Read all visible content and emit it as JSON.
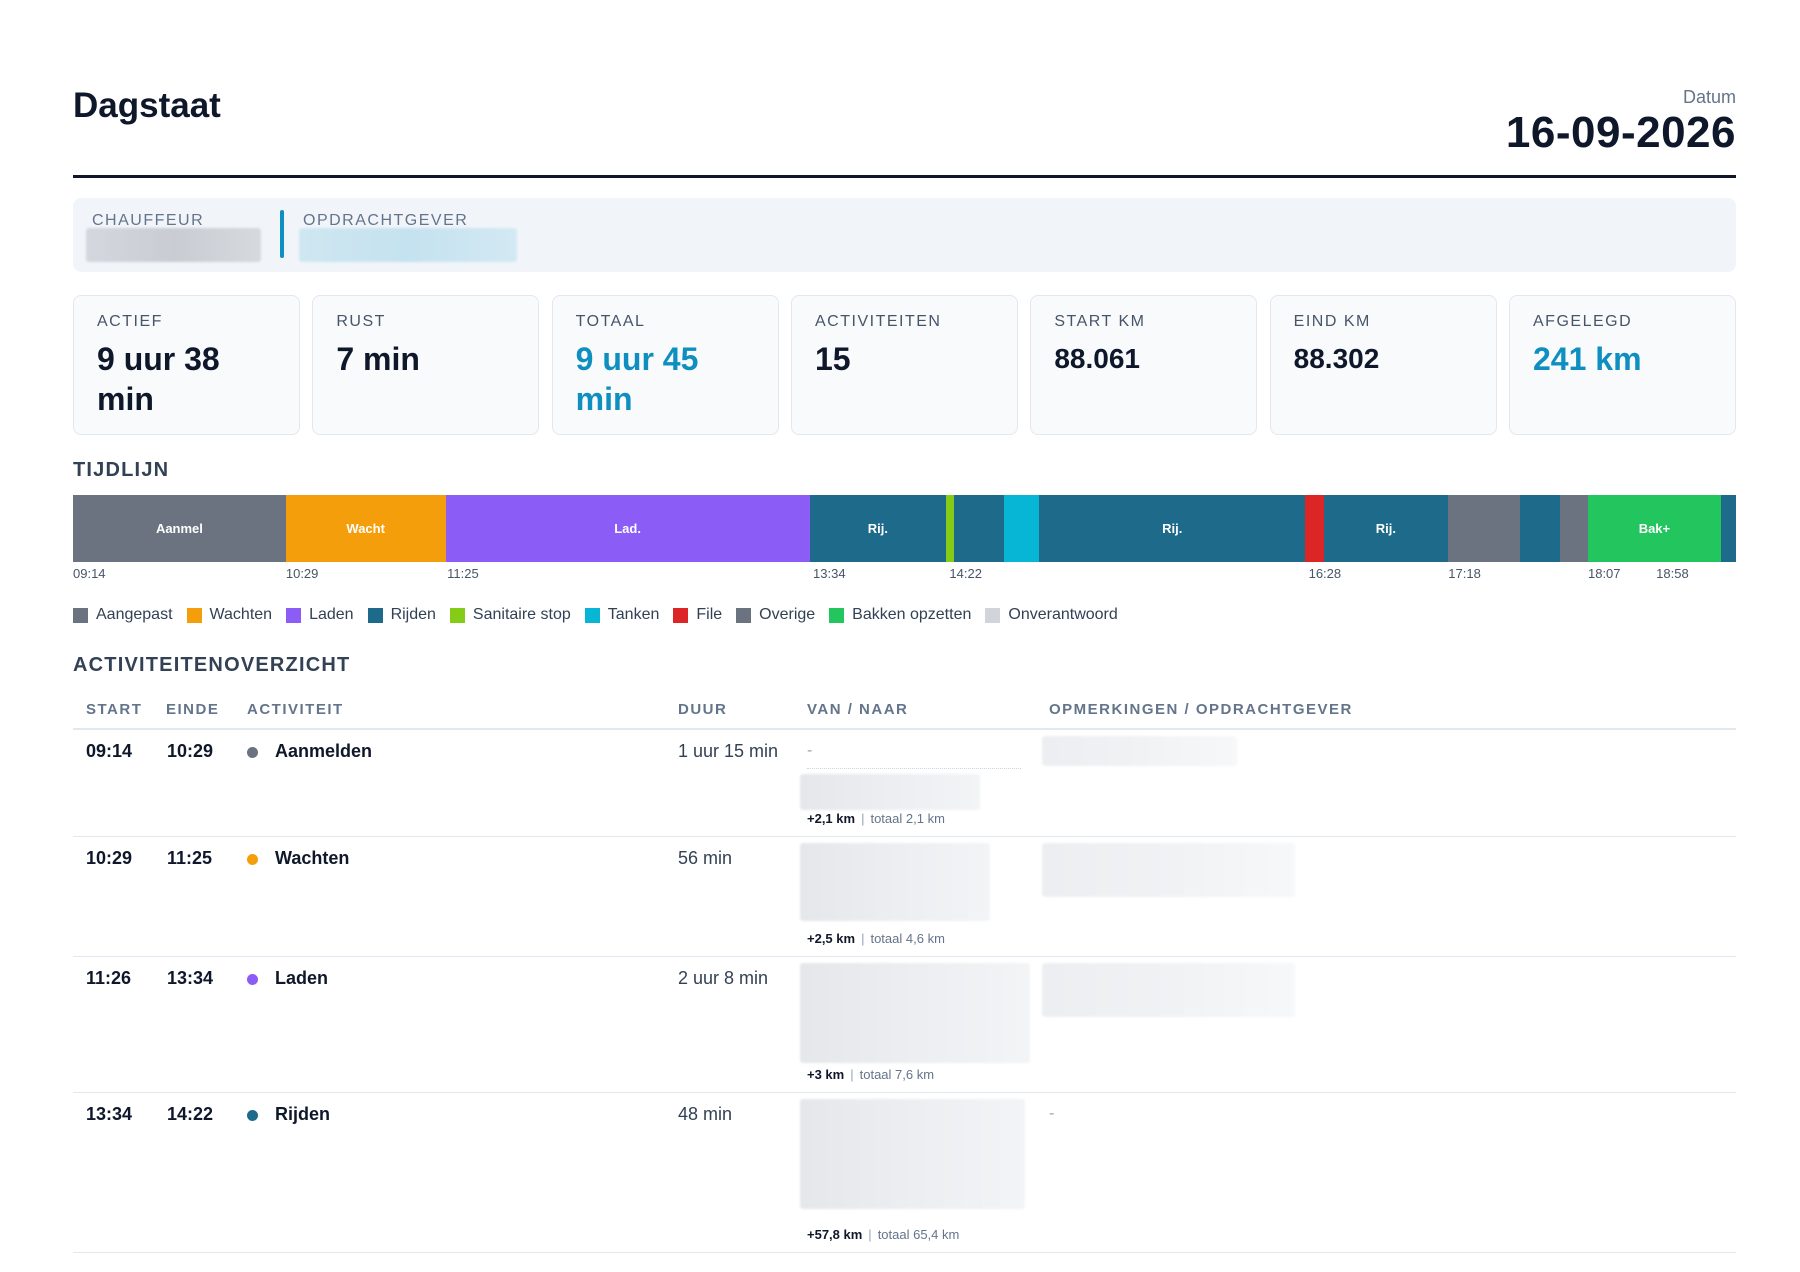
{
  "header": {
    "title": "Dagstaat",
    "date_label": "Datum",
    "date_value": "16-09-2026"
  },
  "info": {
    "driver_label": "CHAUFFEUR",
    "client_label": "OPDRACHTGEVER"
  },
  "stats": [
    {
      "label": "ACTIEF",
      "value": "9 uur 38 min",
      "accent": false
    },
    {
      "label": "RUST",
      "value": "7 min",
      "accent": false
    },
    {
      "label": "TOTAAL",
      "value": "9 uur 45 min",
      "accent": true
    },
    {
      "label": "ACTIVITEITEN",
      "value": "15",
      "accent": false
    },
    {
      "label": "START KM",
      "value": "88.061",
      "accent": false
    },
    {
      "label": "EIND KM",
      "value": "88.302",
      "accent": false
    },
    {
      "label": "AFGELEGD",
      "value": "241 km",
      "accent": true
    }
  ],
  "timeline": {
    "title": "TIJDLIJN",
    "segments": [
      {
        "label": "Aanmel",
        "color": "#6b7280",
        "fraction": 0.128
      },
      {
        "label": "Wacht",
        "color": "#f59e0b",
        "fraction": 0.096
      },
      {
        "label": "Lad.",
        "color": "#8b5cf6",
        "fraction": 0.219
      },
      {
        "label": "Rij.",
        "color": "#1e6a8a",
        "fraction": 0.082
      },
      {
        "label": "",
        "color": "#84cc16",
        "fraction": 0.005
      },
      {
        "label": "",
        "color": "#1e6a8a",
        "fraction": 0.03
      },
      {
        "label": "",
        "color": "#06b6d4",
        "fraction": 0.021
      },
      {
        "label": "Rij.",
        "color": "#1e6a8a",
        "fraction": 0.16
      },
      {
        "label": "",
        "color": "#dc2626",
        "fraction": 0.011
      },
      {
        "label": "Rij.",
        "color": "#1e6a8a",
        "fraction": 0.075
      },
      {
        "label": "",
        "color": "#6b7280",
        "fraction": 0.043
      },
      {
        "label": "",
        "color": "#1e6a8a",
        "fraction": 0.024
      },
      {
        "label": "",
        "color": "#6b7280",
        "fraction": 0.017
      },
      {
        "label": "Bak+",
        "color": "#22c55e",
        "fraction": 0.08
      },
      {
        "label": "",
        "color": "#1e6a8a",
        "fraction": 0.009
      }
    ],
    "ticks": [
      {
        "label": "09:14",
        "pos": 0.0
      },
      {
        "label": "10:29",
        "pos": 0.128
      },
      {
        "label": "11:25",
        "pos": 0.225
      },
      {
        "label": "13:34",
        "pos": 0.445
      },
      {
        "label": "14:22",
        "pos": 0.527
      },
      {
        "label": "16:28",
        "pos": 0.743
      },
      {
        "label": "17:18",
        "pos": 0.827
      },
      {
        "label": "18:07",
        "pos": 0.911
      },
      {
        "label": "18:58",
        "pos": 0.952
      }
    ]
  },
  "legend": [
    {
      "label": "Aangepast",
      "color": "#6b7280"
    },
    {
      "label": "Wachten",
      "color": "#f59e0b"
    },
    {
      "label": "Laden",
      "color": "#8b5cf6"
    },
    {
      "label": "Rijden",
      "color": "#1e6a8a"
    },
    {
      "label": "Sanitaire stop",
      "color": "#84cc16"
    },
    {
      "label": "Tanken",
      "color": "#06b6d4"
    },
    {
      "label": "File",
      "color": "#dc2626"
    },
    {
      "label": "Overige",
      "color": "#6b7280"
    },
    {
      "label": "Bakken opzetten",
      "color": "#22c55e"
    },
    {
      "label": "Onverantwoord",
      "color": "#d1d5db"
    }
  ],
  "overview": {
    "title": "ACTIVITEITENOVERZICHT",
    "columns": {
      "start": "START",
      "end": "EINDE",
      "activity": "ACTIVITEIT",
      "duration": "DUUR",
      "route": "VAN / NAAR",
      "remarks": "OPMERKINGEN / OPDRACHTGEVER"
    },
    "rows": [
      {
        "start": "09:14",
        "end": "10:29",
        "activity": "Aanmelden",
        "color": "#6b7280",
        "duration": "1 uur 15 min",
        "from": "-",
        "km_delta": "+2,1 km",
        "km_total": "totaal 2,1 km",
        "remark": ""
      },
      {
        "start": "10:29",
        "end": "11:25",
        "activity": "Wachten",
        "color": "#f59e0b",
        "duration": "56 min",
        "from": "",
        "km_delta": "+2,5 km",
        "km_total": "totaal 4,6 km",
        "remark": ""
      },
      {
        "start": "11:26",
        "end": "13:34",
        "activity": "Laden",
        "color": "#8b5cf6",
        "duration": "2 uur 8 min",
        "from": "",
        "km_delta": "+3 km",
        "km_total": "totaal 7,6 km",
        "remark": ""
      },
      {
        "start": "13:34",
        "end": "14:22",
        "activity": "Rijden",
        "color": "#1e6a8a",
        "duration": "48 min",
        "from": "",
        "km_delta": "+57,8 km",
        "km_total": "totaal 65,4 km",
        "remark": "-"
      }
    ]
  }
}
